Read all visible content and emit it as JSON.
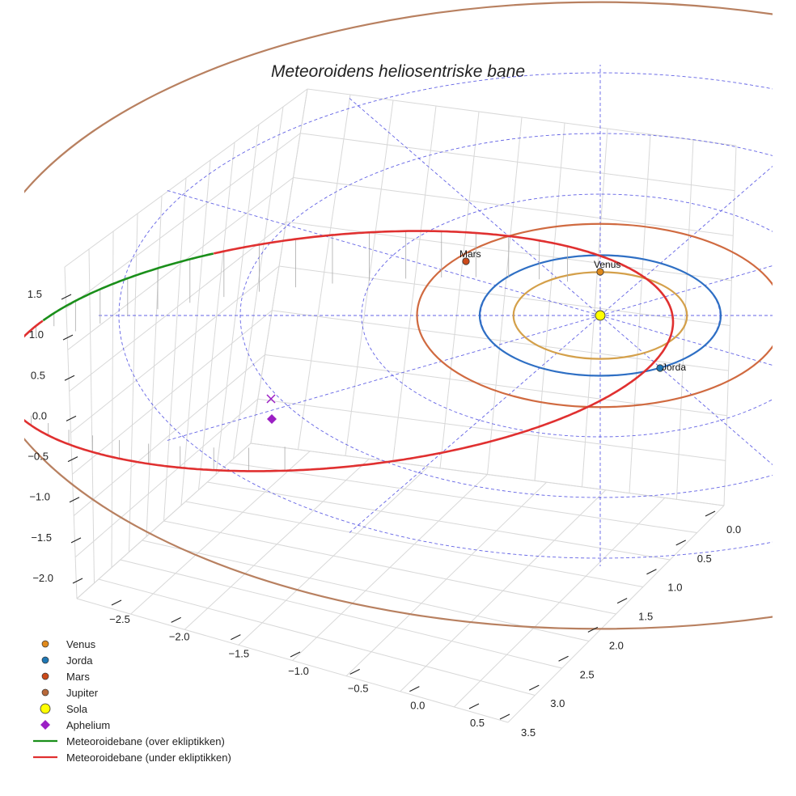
{
  "chart_data": {
    "type": "line",
    "projection": "3d",
    "title": "Meteoroidens heliosentriske bane",
    "axes": {
      "x": {
        "ticks": [
          "−2.5",
          "−2.0",
          "−1.5",
          "−1.0",
          "−0.5",
          "0.0",
          "0.5"
        ],
        "range": [
          -2.8,
          0.8
        ]
      },
      "y": {
        "ticks": [
          "0.0",
          "0.5",
          "1.0",
          "1.5",
          "2.0",
          "2.5",
          "3.0",
          "3.5"
        ],
        "range": [
          -0.2,
          3.6
        ]
      },
      "z": {
        "ticks": [
          "−2.0",
          "−1.5",
          "−1.0",
          "−0.5",
          "0.0",
          "0.5",
          "1.0",
          "1.5"
        ],
        "range": [
          -2.0,
          1.8
        ]
      }
    },
    "series": [
      {
        "name": "Venus orbit",
        "type": "circle",
        "radius_au": 0.72,
        "color": "#d4a04a"
      },
      {
        "name": "Jorda orbit",
        "type": "circle",
        "radius_au": 1.0,
        "color": "#2e6fc4"
      },
      {
        "name": "Mars orbit",
        "type": "circle",
        "radius_au": 1.52,
        "color": "#d06a40"
      },
      {
        "name": "Jupiter orbit",
        "type": "circle",
        "radius_au": 5.2,
        "color": "#b88060"
      },
      {
        "name": "Meteoroidebane (over ekliptikken)",
        "color": "#1a8f1a"
      },
      {
        "name": "Meteoroidebane (under ekliptikken)",
        "color": "#e03030"
      }
    ],
    "points": [
      {
        "name": "Venus",
        "label": "Venus",
        "color": "#e08a1c"
      },
      {
        "name": "Jorda",
        "label": "Jorda",
        "color": "#1f77b4"
      },
      {
        "name": "Mars",
        "label": "Mars",
        "color": "#cc4a1a"
      },
      {
        "name": "Sola",
        "color": "#ffff00"
      },
      {
        "name": "Aphelium",
        "color": "#9b1fc4"
      }
    ],
    "legend": {
      "position": "bottom-left",
      "items": [
        {
          "label": "Venus",
          "marker": "circle",
          "color": "#e08a1c"
        },
        {
          "label": "Jorda",
          "marker": "circle",
          "color": "#1f77b4"
        },
        {
          "label": "Mars",
          "marker": "circle",
          "color": "#cc4a1a"
        },
        {
          "label": "Jupiter",
          "marker": "circle",
          "color": "#b8693a"
        },
        {
          "label": "Sola",
          "marker": "bigcircle",
          "color": "#ffff00"
        },
        {
          "label": "Aphelium",
          "marker": "diamond",
          "color": "#9b1fc4"
        },
        {
          "label": "Meteoroidebane (over ekliptikken)",
          "marker": "line",
          "color": "#1a8f1a"
        },
        {
          "label": "Meteoroidebane (under ekliptikken)",
          "marker": "line",
          "color": "#e03030"
        }
      ]
    }
  }
}
